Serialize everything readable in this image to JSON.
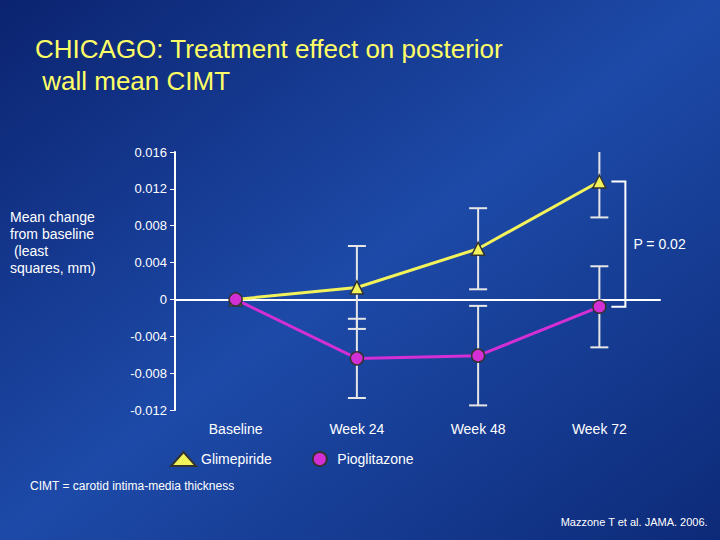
{
  "chart_data": {
    "type": "line",
    "title": "CHICAGO: Treatment effect on posterior wall mean CIMT",
    "y_label": "Mean change from baseline (least squares, mm)",
    "categories": [
      "Baseline",
      "Week 24",
      "Week 48",
      "Week 72"
    ],
    "series": [
      {
        "name": "Glimepiride",
        "color": "#f2f25a",
        "marker": "triangle",
        "values": [
          0,
          0.0013,
          0.0055,
          0.0128
        ],
        "error_low": [
          null,
          -0.0032,
          0.0011,
          0.0089
        ],
        "error_high": [
          null,
          0.0058,
          0.0099,
          0.0165
        ]
      },
      {
        "name": "Pioglitazone",
        "color": "#d42fd4",
        "marker": "circle",
        "values": [
          0,
          -0.0064,
          -0.0061,
          -0.0008
        ],
        "error_low": [
          null,
          -0.0107,
          -0.0115,
          -0.0052
        ],
        "error_high": [
          null,
          -0.0021,
          -0.0007,
          0.0036
        ]
      }
    ],
    "ylim": [
      -0.012,
      0.016
    ],
    "yticks": [
      -0.012,
      -0.008,
      -0.004,
      0,
      0.004,
      0.008,
      0.012,
      0.016
    ],
    "grid": false,
    "legend": "bottom",
    "annotation": "P = 0.02",
    "footnote": "CIMT = carotid intima-media thickness",
    "source": "Mazzone T et al. JAMA. 2006."
  }
}
